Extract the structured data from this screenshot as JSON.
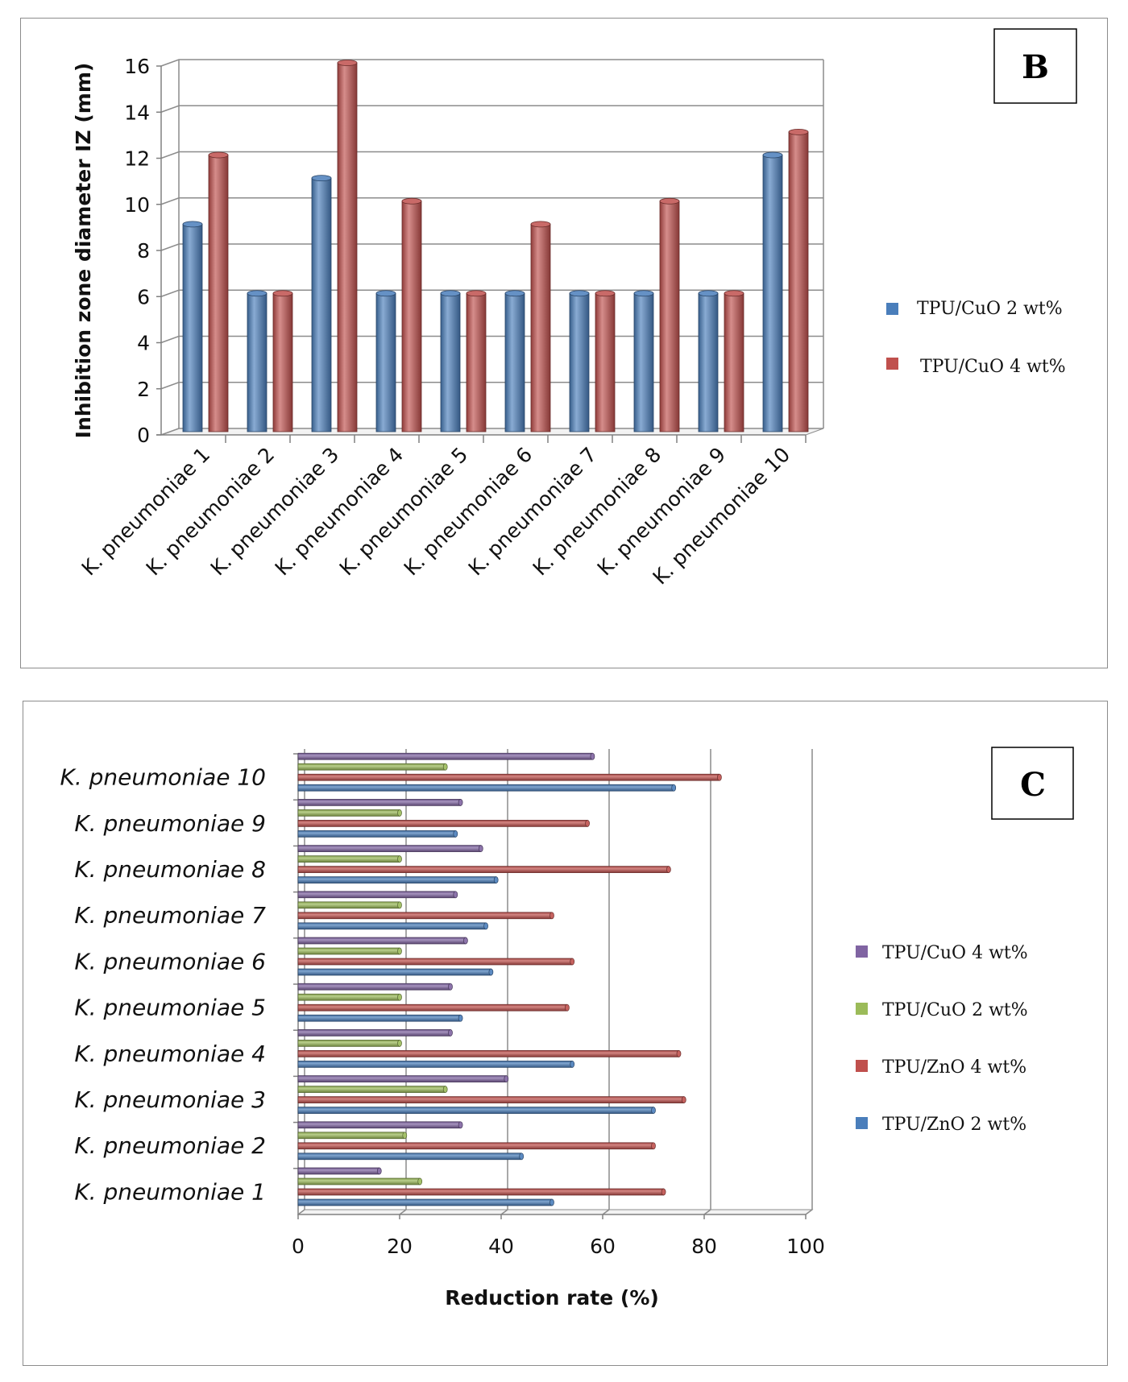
{
  "chart_data": [
    {
      "type": "bar",
      "panel_label": "B",
      "title": "",
      "xlabel": "",
      "ylabel": "Inhibition zone diameter IZ (mm)",
      "ylim": [
        0,
        16
      ],
      "yticks": [
        0,
        2,
        4,
        6,
        8,
        10,
        12,
        14,
        16
      ],
      "categories": [
        "K. pneumoniae 1",
        "K. pneumoniae 2",
        "K. pneumoniae 3",
        "K. pneumoniae 4",
        "K. pneumoniae 5",
        "K. pneumoniae 6",
        "K. pneumoniae 7",
        "K. pneumoniae 8",
        "K. pneumoniae 9",
        "K. pneumoniae 10"
      ],
      "series": [
        {
          "name": "TPU/CuO 2 wt%",
          "color": "#4a7ebb",
          "values": [
            9,
            6,
            11,
            6,
            6,
            6,
            6,
            6,
            6,
            12
          ]
        },
        {
          "name": "TPU/CuO 4 wt%",
          "color": "#c0504d",
          "values": [
            12,
            6,
            16,
            10,
            6,
            9,
            6,
            10,
            6,
            13
          ]
        }
      ],
      "legend_position": "right"
    },
    {
      "type": "bar",
      "orientation": "horizontal",
      "panel_label": "C",
      "title": "",
      "xlabel": "Reduction rate (%)",
      "ylabel": "",
      "xlim": [
        0,
        100
      ],
      "xticks": [
        0,
        20,
        40,
        60,
        80,
        100
      ],
      "categories": [
        "K. pneumoniae 1",
        "K. pneumoniae 2",
        "K. pneumoniae 3",
        "K. pneumoniae 4",
        "K. pneumoniae 5",
        "K. pneumoniae 6",
        "K. pneumoniae 7",
        "K. pneumoniae 8",
        "K. pneumoniae 9",
        "K. pneumoniae 10"
      ],
      "series": [
        {
          "name": "TPU/ZnO 2 wt%",
          "color": "#4a7ebb",
          "values": [
            50,
            44,
            70,
            54,
            32,
            38,
            37,
            39,
            31,
            74
          ]
        },
        {
          "name": "TPU/ZnO 4 wt%",
          "color": "#c0504d",
          "values": [
            72,
            70,
            76,
            75,
            53,
            54,
            50,
            73,
            57,
            83
          ]
        },
        {
          "name": "TPU/CuO 2 wt%",
          "color": "#9bbb59",
          "values": [
            24,
            21,
            29,
            20,
            20,
            20,
            20,
            20,
            20,
            29
          ]
        },
        {
          "name": "TPU/CuO 4 wt%",
          "color": "#8064a2",
          "values": [
            16,
            32,
            41,
            30,
            30,
            33,
            31,
            36,
            32,
            58
          ]
        }
      ],
      "legend_order": [
        "TPU/CuO 4 wt%",
        "TPU/CuO 2 wt%",
        "TPU/ZnO 4 wt%",
        "TPU/ZnO 2 wt%"
      ],
      "legend_position": "right"
    }
  ]
}
